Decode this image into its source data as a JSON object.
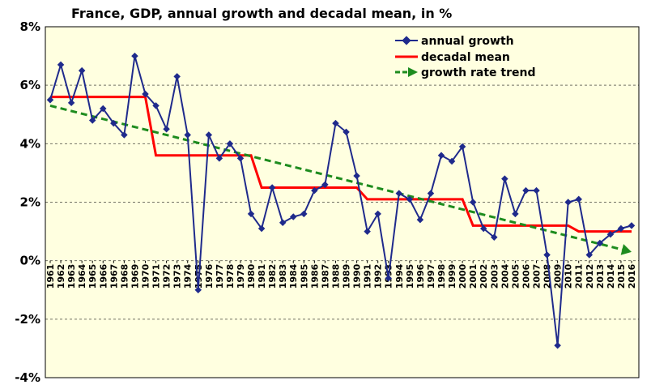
{
  "chart_data": {
    "type": "line",
    "title": "France, GDP, annual growth and decadal mean, in %",
    "xlabel": "",
    "ylabel": "",
    "ylim": [
      -4,
      8
    ],
    "y_ticks": [
      "8%",
      "6%",
      "4%",
      "2%",
      "0%",
      "-2%",
      "-4%"
    ],
    "y_tick_values": [
      8,
      6,
      4,
      2,
      0,
      -2,
      -4
    ],
    "grid": "horizontal dashed",
    "legend_position": "top-right",
    "categories": [
      "1961",
      "1962",
      "1963",
      "1964",
      "1965",
      "1966",
      "1967",
      "1968",
      "1969",
      "1970",
      "1971",
      "1972",
      "1973",
      "1974",
      "1975",
      "1976",
      "1977",
      "1978",
      "1979",
      "1980",
      "1981",
      "1982",
      "1983",
      "1984",
      "1985",
      "1986",
      "1987",
      "1988",
      "1989",
      "1990",
      "1991",
      "1992",
      "1993",
      "1994",
      "1995",
      "1996",
      "1997",
      "1998",
      "1999",
      "2000",
      "2001",
      "2002",
      "2003",
      "2004",
      "2005",
      "2006",
      "2007",
      "2008",
      "2009",
      "2010",
      "2011",
      "2012",
      "2013",
      "2014",
      "2015",
      "2016"
    ],
    "series": [
      {
        "name": "annual growth",
        "style": "line-with-diamond-markers",
        "color": "#1f2a8c",
        "values": [
          5.5,
          6.7,
          5.4,
          6.5,
          4.8,
          5.2,
          4.7,
          4.3,
          7.0,
          5.7,
          5.3,
          4.5,
          6.3,
          4.3,
          -1.0,
          4.3,
          3.5,
          4.0,
          3.5,
          1.6,
          1.1,
          2.5,
          1.3,
          1.5,
          1.6,
          2.4,
          2.6,
          4.7,
          4.4,
          2.9,
          1.0,
          1.6,
          -0.6,
          2.3,
          2.1,
          1.4,
          2.3,
          3.6,
          3.4,
          3.9,
          2.0,
          1.1,
          0.8,
          2.8,
          1.6,
          2.4,
          2.4,
          0.2,
          -2.9,
          2.0,
          2.1,
          0.2,
          0.6,
          0.9,
          1.1,
          1.2
        ]
      },
      {
        "name": "decadal mean",
        "style": "step-line",
        "color": "#ff0000",
        "steps": [
          {
            "from": "1961",
            "to": "1970",
            "value": 5.6
          },
          {
            "from": "1971",
            "to": "1980",
            "value": 3.6
          },
          {
            "from": "1981",
            "to": "1990",
            "value": 2.5
          },
          {
            "from": "1991",
            "to": "2000",
            "value": 2.1
          },
          {
            "from": "2001",
            "to": "2010",
            "value": 1.2
          },
          {
            "from": "2011",
            "to": "2016",
            "value": 1.0
          }
        ]
      },
      {
        "name": "growth rate trend",
        "style": "dashed-arrow",
        "color": "#1e8c1e",
        "start": {
          "x": "1961",
          "y": 5.3
        },
        "end": {
          "x": "2016",
          "y": 0.3
        }
      }
    ]
  },
  "colors": {
    "plot_background": "#ffffe0",
    "grid": "#000000"
  }
}
